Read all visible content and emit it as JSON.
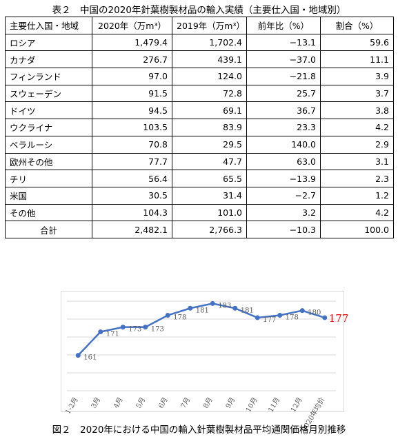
{
  "table": {
    "title": "表２　中国の2020年針葉樹製材品の輸入実績（主要仕入国・地域別）",
    "header": [
      "主要仕入国・地域",
      "2020年（万m³）",
      "2019年（万m³）",
      "前年比（%）",
      "割合（%）"
    ],
    "rows": [
      [
        "ロシア",
        "1,479.4",
        "1,702.4",
        "−13.1",
        "59.6"
      ],
      [
        "カナダ",
        "276.7",
        "439.1",
        "−37.0",
        "11.1"
      ],
      [
        "フィンランド",
        "97.0",
        "124.0",
        "−21.8",
        "3.9"
      ],
      [
        "スウェーデン",
        "91.5",
        "72.8",
        "25.7",
        "3.7"
      ],
      [
        "ドイツ",
        "94.5",
        "69.1",
        "36.7",
        "3.8"
      ],
      [
        "ウクライナ",
        "103.5",
        "83.9",
        "23.3",
        "4.2"
      ],
      [
        "ベラルーシ",
        "70.8",
        "29.5",
        "140.0",
        "2.9"
      ],
      [
        "欧州その他",
        "77.7",
        "47.7",
        "63.0",
        "3.1"
      ],
      [
        "チリ",
        "56.4",
        "65.5",
        "−13.9",
        "2.3"
      ],
      [
        "米国",
        "30.5",
        "31.4",
        "−2.7",
        "1.2"
      ],
      [
        "その他",
        "104.3",
        "101.0",
        "3.2",
        "4.2"
      ]
    ],
    "total": [
      "合計",
      "2,482.1",
      "2,766.3",
      "−10.3",
      "100.0"
    ]
  },
  "chart_data": {
    "type": "line",
    "caption": "図２　2020年における中国の輸入針葉樹製材品平均通関価格月別推移",
    "categories": [
      "1-2月",
      "3月",
      "4月",
      "5月",
      "6月",
      "7月",
      "8月",
      "9月",
      "10月",
      "11月",
      "12月",
      "2020年均价"
    ],
    "values": [
      161,
      171,
      173,
      173,
      178,
      181,
      183,
      181,
      177,
      178,
      180,
      177
    ],
    "color": "#4472c4",
    "highlight_color": "#ff0000",
    "ylim": [
      146,
      184
    ],
    "grid": true
  }
}
